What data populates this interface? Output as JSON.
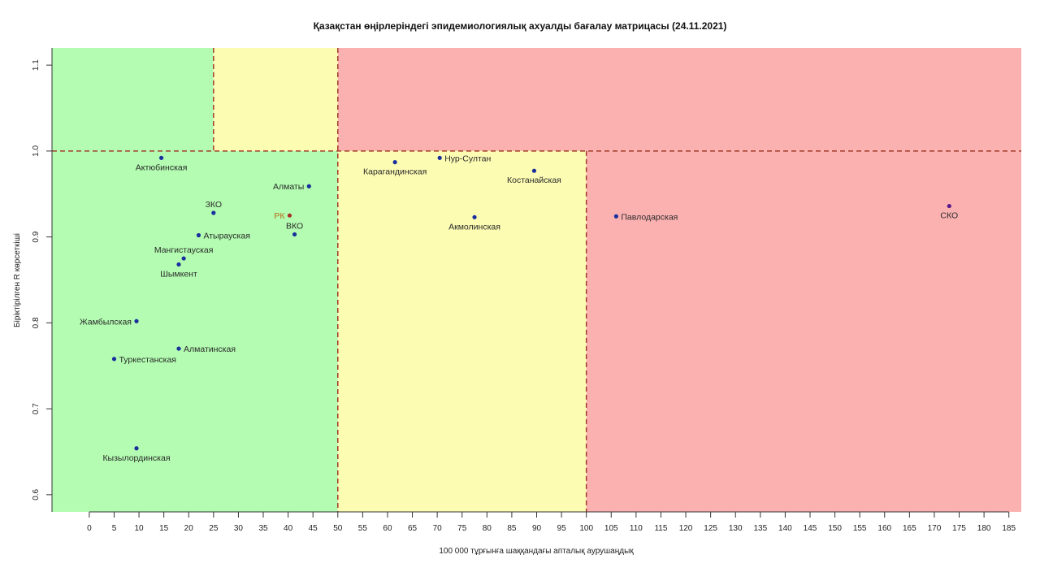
{
  "chart_data": {
    "type": "scatter",
    "title": "Қазақстан өңірлеріндегі эпидемиологиялық ахуалды бағалау матрицасы  (24.11.2021)",
    "xlabel": "100 000 тұрғынға шаққандағы апталық аурушаңдық",
    "ylabel": "Біріктірілген R көрсеткіші",
    "xlim": [
      -7.5,
      187.5
    ],
    "ylim": [
      0.58,
      1.12
    ],
    "x_ticks": [
      0,
      5,
      10,
      15,
      20,
      25,
      30,
      35,
      40,
      45,
      50,
      55,
      60,
      65,
      70,
      75,
      80,
      85,
      90,
      95,
      100,
      105,
      110,
      115,
      120,
      125,
      130,
      135,
      140,
      145,
      150,
      155,
      160,
      165,
      170,
      175,
      180,
      185
    ],
    "y_ticks": [
      0.6,
      0.7,
      0.8,
      0.9,
      1.0,
      1.1
    ],
    "y_tick_labels": [
      "0.6",
      "0.7",
      "0.8",
      "0.9",
      "1.0",
      "1.1"
    ],
    "grid": false,
    "thresholds": {
      "x": [
        25,
        50,
        100
      ],
      "y": 1.0
    },
    "zone_colors": {
      "green": "#b3fcb1",
      "yellow": "#fdfcb3",
      "red": "#fcb1b1",
      "divider": "#a23b2a"
    },
    "colors": {
      "point": "#1a2f9e",
      "label": "#2a2a2a",
      "rk_point": "#a9322a",
      "rk_label": "#b76a1b",
      "sko_point": "#5a1a8a"
    },
    "points": [
      {
        "name": "Актюбинская",
        "x": 14.5,
        "y": 0.992,
        "label_pos": "below"
      },
      {
        "name": "Алматы",
        "x": 44.2,
        "y": 0.959,
        "label_pos": "left"
      },
      {
        "name": "ЗКО",
        "x": 25.0,
        "y": 0.928,
        "label_pos": "above"
      },
      {
        "name": "РК",
        "x": 40.3,
        "y": 0.925,
        "label_pos": "left",
        "highlight": "rk"
      },
      {
        "name": "ВКО",
        "x": 41.3,
        "y": 0.903,
        "label_pos": "above"
      },
      {
        "name": "Атырауская",
        "x": 22.0,
        "y": 0.902,
        "label_pos": "right"
      },
      {
        "name": "Мангистауская",
        "x": 19.0,
        "y": 0.875,
        "label_pos": "above"
      },
      {
        "name": "Шымкент",
        "x": 18.0,
        "y": 0.868,
        "label_pos": "below"
      },
      {
        "name": "Жамбылская",
        "x": 9.5,
        "y": 0.802,
        "label_pos": "left"
      },
      {
        "name": "Алматинская",
        "x": 18.0,
        "y": 0.77,
        "label_pos": "right"
      },
      {
        "name": "Туркестанская",
        "x": 5.0,
        "y": 0.758,
        "label_pos": "right"
      },
      {
        "name": "Кызылординская",
        "x": 9.5,
        "y": 0.654,
        "label_pos": "below"
      },
      {
        "name": "Нур-Султан",
        "x": 70.5,
        "y": 0.992,
        "label_pos": "right"
      },
      {
        "name": "Карагандинская",
        "x": 61.5,
        "y": 0.987,
        "label_pos": "below"
      },
      {
        "name": "Костанайская",
        "x": 89.5,
        "y": 0.977,
        "label_pos": "below"
      },
      {
        "name": "Акмолинская",
        "x": 77.5,
        "y": 0.923,
        "label_pos": "below"
      },
      {
        "name": "Павлодарская",
        "x": 106.0,
        "y": 0.924,
        "label_pos": "right"
      },
      {
        "name": "СКО",
        "x": 173.0,
        "y": 0.936,
        "label_pos": "below",
        "highlight": "sko"
      }
    ]
  }
}
